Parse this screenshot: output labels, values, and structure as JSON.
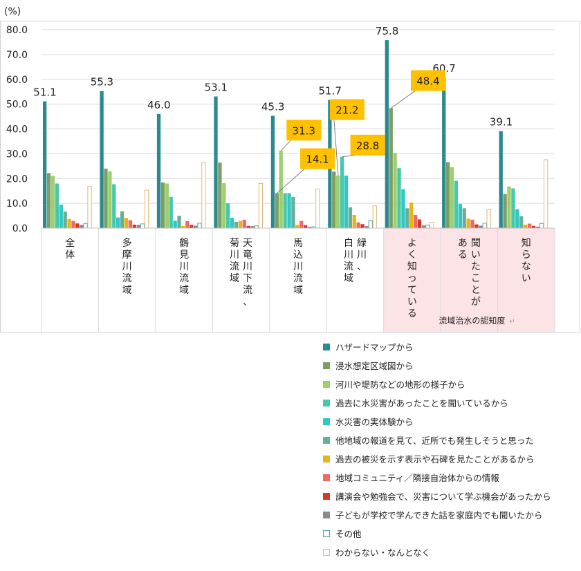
{
  "chart_data": {
    "type": "bar",
    "unit_label": "(%)",
    "ylim": [
      0,
      80
    ],
    "yticks": [
      "0.0",
      "10.0",
      "20.0",
      "30.0",
      "40.0",
      "50.0",
      "60.0",
      "70.0",
      "80.0"
    ],
    "categories": [
      "全体",
      "多摩川流域",
      "鶴見川流域",
      "天竜川下流、菊川流域",
      "馬込川流域",
      "緑川、白川流域",
      "よく知っている",
      "聞いたことがある",
      "知らない"
    ],
    "category_label_columns": [
      [
        "全体"
      ],
      [
        "多摩川流域"
      ],
      [
        "鶴見川流域"
      ],
      [
        "天竜川下流、",
        "菊川流域"
      ],
      [
        "馬込川流域"
      ],
      [
        "緑川、",
        "白川流域"
      ],
      [
        "よく知っている"
      ],
      [
        "聞いたことが",
        "ある"
      ],
      [
        "知らない"
      ]
    ],
    "group_label": "流域治水の認知度",
    "group_label_mark": "↵",
    "highlight_color": "#fbe3e6",
    "highlight_categories": [
      "よく知っている",
      "聞いたことがある",
      "知らない"
    ],
    "series": [
      {
        "name": "ハザードマップから",
        "color": "#2a8a8f",
        "values": [
          51.1,
          55.3,
          46.0,
          53.1,
          45.3,
          51.7,
          75.8,
          60.7,
          39.1
        ]
      },
      {
        "name": "浸水想定区域図から",
        "color": "#7a9e63",
        "values": [
          22.2,
          24.0,
          18.4,
          26.4,
          14.1,
          22.8,
          48.4,
          26.6,
          13.8
        ]
      },
      {
        "name": "河川や堤防などの地形の様子から",
        "color": "#9ccf6e",
        "values": [
          21.1,
          22.9,
          18.0,
          18.1,
          31.3,
          21.2,
          30.3,
          24.6,
          16.8
        ]
      },
      {
        "name": "過去に水災害があったことを聞いているから",
        "color": "#47c7ad",
        "values": [
          18.0,
          17.7,
          12.6,
          10.0,
          14.1,
          28.8,
          24.2,
          19.1,
          16.0
        ]
      },
      {
        "name": "水災害の実体験から",
        "color": "#2ec8c6",
        "values": [
          9.5,
          4.3,
          3.0,
          4.2,
          14.1,
          21.2,
          15.7,
          9.8,
          7.6
        ]
      },
      {
        "name": "他地域の報道を見て、近所でも発生しそうと思った",
        "color": "#6aaf95",
        "values": [
          6.7,
          6.8,
          5.0,
          2.5,
          12.6,
          8.4,
          8.0,
          8.0,
          4.8
        ]
      },
      {
        "name": "過去の被災を示す表示や石碑を見たことがあるから",
        "color": "#e8b31c",
        "values": [
          3.7,
          4.1,
          0.9,
          2.9,
          1.3,
          5.3,
          10.3,
          3.8,
          1.4
        ]
      },
      {
        "name": "地域コミュニティ／隣接自治体からの情報",
        "color": "#ef6a63",
        "values": [
          2.9,
          3.2,
          2.8,
          3.4,
          2.9,
          2.3,
          5.3,
          3.4,
          1.8
        ]
      },
      {
        "name": "講演会や勉強会で、災害について学ぶ機会があったから",
        "color": "#d23a2a",
        "values": [
          1.9,
          1.4,
          1.3,
          0.9,
          1.2,
          1.6,
          3.5,
          1.5,
          0.9
        ]
      },
      {
        "name": "子どもが学校で学んできた話を家庭内でも聞いたから",
        "color": "#8a8a8a",
        "values": [
          1.3,
          1.3,
          1.0,
          0.8,
          0.5,
          0.8,
          1.1,
          1.0,
          0.6
        ]
      },
      {
        "name": "その他",
        "color": "#4fa1a6",
        "outline": true,
        "values": [
          1.9,
          1.7,
          2.0,
          0.9,
          0.5,
          3.1,
          1.2,
          2.0,
          1.9
        ]
      },
      {
        "name": "わからない・なんとなく",
        "color": "#e0b87a",
        "outline": true,
        "values": [
          16.9,
          15.3,
          26.6,
          18.0,
          15.8,
          9.0,
          2.3,
          7.6,
          27.6
        ]
      }
    ],
    "data_labels_top": [
      {
        "category": 0,
        "series": 0,
        "text": "51.1"
      },
      {
        "category": 1,
        "series": 0,
        "text": "55.3"
      },
      {
        "category": 2,
        "series": 0,
        "text": "46.0"
      },
      {
        "category": 3,
        "series": 0,
        "text": "53.1"
      },
      {
        "category": 4,
        "series": 0,
        "text": "45.3"
      },
      {
        "category": 5,
        "series": 0,
        "text": "51.7"
      },
      {
        "category": 6,
        "series": 0,
        "text": "75.8"
      },
      {
        "category": 7,
        "series": 0,
        "text": "60.7"
      },
      {
        "category": 8,
        "series": 0,
        "text": "39.1"
      }
    ],
    "callouts": [
      {
        "category": 4,
        "series": 2,
        "text": "31.3",
        "box_value": 39.5,
        "box_offset": 1.0
      },
      {
        "category": 4,
        "series": 1,
        "text": "14.1",
        "box_value": 28.0,
        "box_offset": 1.4
      },
      {
        "category": 5,
        "series": 2,
        "text": "21.2",
        "box_value": 47.8,
        "box_offset": 0.6
      },
      {
        "category": 5,
        "series": 3,
        "text": "28.8",
        "box_value": 33.5,
        "box_offset": 1.2
      },
      {
        "category": 6,
        "series": 1,
        "text": "48.4",
        "box_value": 59.5,
        "box_offset": 1.3
      }
    ],
    "callout_color": "#ffc000"
  }
}
